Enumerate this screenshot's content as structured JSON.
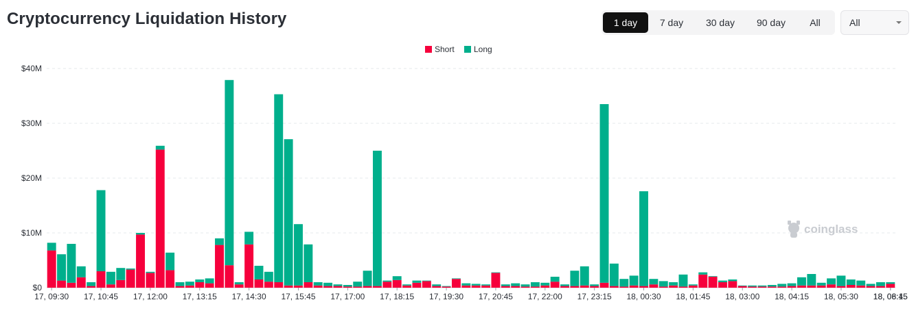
{
  "title": "Cryptocurrency Liquidation History",
  "range_buttons": [
    {
      "label": "1 day",
      "active": true
    },
    {
      "label": "7 day",
      "active": false
    },
    {
      "label": "30 day",
      "active": false
    },
    {
      "label": "90 day",
      "active": false
    },
    {
      "label": "All",
      "active": false
    }
  ],
  "select": {
    "value": "All"
  },
  "watermark": "coinglass",
  "colors": {
    "short": "#f6003c",
    "long": "#00af8c",
    "grid": "#e6e8eb"
  },
  "chart_data": {
    "type": "bar",
    "stacked": true,
    "legend": [
      "Short",
      "Long"
    ],
    "legend_position": "top-center",
    "grid": true,
    "y_ticks": [
      "$0",
      "$10M",
      "$20M",
      "$30M",
      "$40M"
    ],
    "ylim": [
      0,
      40
    ],
    "y_unit": "$M",
    "x_tick_labels": [
      "17, 09:30",
      "17, 10:45",
      "17, 12:00",
      "17, 13:15",
      "17, 14:30",
      "17, 15:45",
      "17, 17:00",
      "17, 18:15",
      "17, 19:30",
      "17, 20:45",
      "17, 22:00",
      "17, 23:15",
      "18, 00:30",
      "18, 01:45",
      "18, 03:00",
      "18, 04:15",
      "18, 05:30",
      "18, 06:45",
      "18, 08:15"
    ],
    "series": [
      {
        "name": "Short",
        "values": [
          6.8,
          1.3,
          0.9,
          1.9,
          0.3,
          3.0,
          0.6,
          1.4,
          3.3,
          9.7,
          2.7,
          25.2,
          3.2,
          0.3,
          0.4,
          1.0,
          0.8,
          7.8,
          4.1,
          0.6,
          7.9,
          1.5,
          1.1,
          1.0,
          0.4,
          0.4,
          1.0,
          0.4,
          0.3,
          0.3,
          0.2,
          0.2,
          0.3,
          0.3,
          1.1,
          1.4,
          0.4,
          0.9,
          1.2,
          0.3,
          0.2,
          1.6,
          0.4,
          0.4,
          0.4,
          2.7,
          0.3,
          0.3,
          0.2,
          0.2,
          0.4,
          1.1,
          0.3,
          0.3,
          0.4,
          0.3,
          0.9,
          0.3,
          0.2,
          0.4,
          0.3,
          0.6,
          0.2,
          0.4,
          0.2,
          0.4,
          2.4,
          2.0,
          1.0,
          1.2,
          0.3,
          0.2,
          0.2,
          0.2,
          0.2,
          0.3,
          0.4,
          0.4,
          0.4,
          0.6,
          0.3,
          0.5,
          0.4,
          0.3,
          0.3,
          0.7
        ]
      },
      {
        "name": "Long",
        "values": [
          1.4,
          4.8,
          7.1,
          2.0,
          0.7,
          14.8,
          2.3,
          2.2,
          0.2,
          0.3,
          0.2,
          0.7,
          3.2,
          0.7,
          0.7,
          0.5,
          0.9,
          1.2,
          33.8,
          0.4,
          2.3,
          2.5,
          1.8,
          34.3,
          26.7,
          11.2,
          6.9,
          0.6,
          0.6,
          0.3,
          0.3,
          0.9,
          2.8,
          24.7,
          0.2,
          0.7,
          0.2,
          0.4,
          0.1,
          0.3,
          0.1,
          0.1,
          0.4,
          0.3,
          0.2,
          0.1,
          0.3,
          0.5,
          0.4,
          0.8,
          0.5,
          0.9,
          0.3,
          2.8,
          3.5,
          0.3,
          32.6,
          4.1,
          1.4,
          1.8,
          17.3,
          1.0,
          1.0,
          0.6,
          2.2,
          0.2,
          0.4,
          0.1,
          0.3,
          0.3,
          0.1,
          0.2,
          0.2,
          0.3,
          0.5,
          0.5,
          1.5,
          2.1,
          0.5,
          1.1,
          1.9,
          1.0,
          0.9,
          0.4,
          0.7,
          0.3
        ]
      }
    ]
  }
}
